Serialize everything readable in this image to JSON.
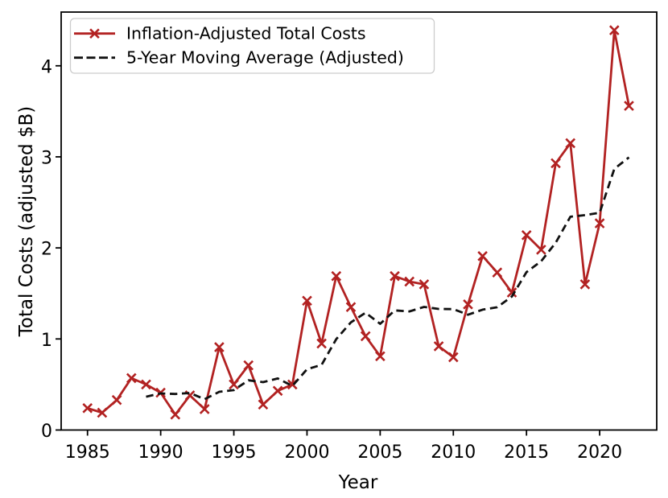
{
  "figure": {
    "background": "#ffffff",
    "title": ""
  },
  "legend": {
    "position": "upper left",
    "items": [
      {
        "label": "Inflation-Adjusted Total Costs",
        "color": "#b22222",
        "style": "solid-with-x-marker"
      },
      {
        "label": "5-Year Moving Average (Adjusted)",
        "color": "#111111",
        "style": "dashed"
      }
    ]
  },
  "chart_data": {
    "type": "line",
    "title": "",
    "xlabel": "Year",
    "ylabel": "Total Costs (adjusted $B)",
    "xlim": [
      1983.2,
      2023.9
    ],
    "ylim": [
      0,
      4.59
    ],
    "x_ticks": [
      1985,
      1990,
      1995,
      2000,
      2005,
      2010,
      2015,
      2020
    ],
    "y_ticks": [
      0,
      1,
      2,
      3,
      4
    ],
    "grid": false,
    "legend_position": "upper left",
    "series": [
      {
        "name": "Inflation-Adjusted Total Costs",
        "color": "#b22222",
        "marker": "x",
        "line_style": "solid",
        "x": [
          1985,
          1986,
          1987,
          1988,
          1989,
          1990,
          1991,
          1992,
          1993,
          1994,
          1995,
          1996,
          1997,
          1998,
          1999,
          2000,
          2001,
          2002,
          2003,
          2004,
          2005,
          2006,
          2007,
          2008,
          2009,
          2010,
          2011,
          2012,
          2013,
          2014,
          2015,
          2016,
          2017,
          2018,
          2019,
          2020,
          2021,
          2022
        ],
        "values": [
          0.24,
          0.19,
          0.33,
          0.57,
          0.5,
          0.41,
          0.17,
          0.38,
          0.23,
          0.91,
          0.5,
          0.71,
          0.28,
          0.43,
          0.5,
          1.42,
          0.95,
          1.69,
          1.35,
          1.03,
          0.81,
          1.69,
          1.63,
          1.6,
          0.92,
          0.8,
          1.38,
          1.91,
          1.73,
          1.51,
          2.14,
          1.98,
          2.93,
          3.15,
          1.6,
          2.27,
          4.39,
          3.56
        ]
      },
      {
        "name": "5-Year Moving Average (Adjusted)",
        "color": "#111111",
        "marker": "none",
        "line_style": "dashed",
        "x": [
          1989,
          1990,
          1991,
          1992,
          1993,
          1994,
          1995,
          1996,
          1997,
          1998,
          1999,
          2000,
          2001,
          2002,
          2003,
          2004,
          2005,
          2006,
          2007,
          2008,
          2009,
          2010,
          2011,
          2012,
          2013,
          2014,
          2015,
          2016,
          2017,
          2018,
          2019,
          2020,
          2021,
          2022
        ],
        "values": [
          0.366,
          0.402,
          0.396,
          0.406,
          0.338,
          0.42,
          0.438,
          0.546,
          0.526,
          0.566,
          0.484,
          0.668,
          0.716,
          0.998,
          1.182,
          1.288,
          1.166,
          1.314,
          1.302,
          1.352,
          1.33,
          1.328,
          1.266,
          1.322,
          1.348,
          1.466,
          1.734,
          1.854,
          2.058,
          2.342,
          2.36,
          2.386,
          2.868,
          2.994
        ]
      }
    ]
  }
}
